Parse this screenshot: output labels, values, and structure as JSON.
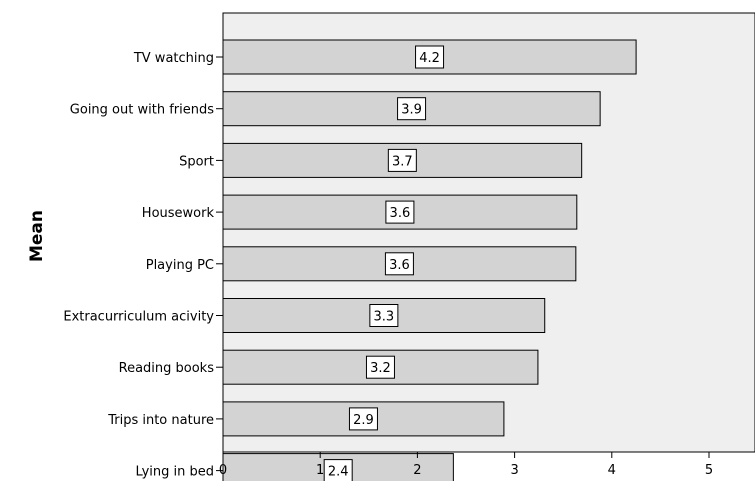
{
  "chart_data": {
    "type": "bar",
    "orientation": "horizontal",
    "categories": [
      "TV watching",
      "Going out with friends",
      "Sport",
      "Housework",
      "Playing PC",
      "Extracurriculum acivity",
      "Reading books",
      "Trips into nature",
      "Lying in bed"
    ],
    "values": [
      4.25,
      3.88,
      3.69,
      3.64,
      3.63,
      3.31,
      3.24,
      2.89,
      2.37
    ],
    "data_labels": [
      "4.2",
      "3.9",
      "3.7",
      "3.6",
      "3.6",
      "3.3",
      "3.2",
      "2.9",
      "2.4"
    ],
    "title": "",
    "xlabel": "",
    "ylabel": "Mean",
    "xlim": [
      0,
      5.4
    ],
    "x_ticks": [
      "0",
      "1",
      "2",
      "3",
      "4",
      "5"
    ],
    "grid": false,
    "colors": {
      "plot_background": "#efefef",
      "bar_fill": "#d3d3d3",
      "bar_stroke": "#000000",
      "label_box": "#ffffff"
    }
  }
}
